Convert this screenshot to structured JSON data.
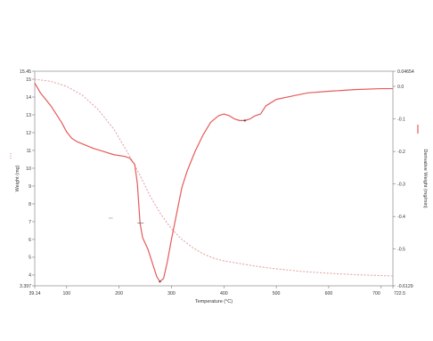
{
  "chart_data": {
    "type": "line",
    "title": "",
    "xlabel": "Temperature (°C)",
    "ylabel": "Weight (mg)",
    "y2label": "Derivative Weight (mg/min)",
    "xlim": [
      39.14,
      722.5
    ],
    "ylim": [
      3.397,
      15.45
    ],
    "y2lim": [
      -0.6129,
      0.04654
    ],
    "grid": false,
    "x_ticks": [
      {
        "value": 39.14,
        "label": "39.14"
      },
      {
        "value": 100,
        "label": "100"
      },
      {
        "value": 200,
        "label": "200"
      },
      {
        "value": 300,
        "label": "300"
      },
      {
        "value": 400,
        "label": "400"
      },
      {
        "value": 500,
        "label": "500"
      },
      {
        "value": 600,
        "label": "600"
      },
      {
        "value": 700,
        "label": "700"
      },
      {
        "value": 722.5,
        "label": "722.5"
      }
    ],
    "y_ticks": [
      {
        "value": 15.45,
        "label": "15.45"
      },
      {
        "value": 15,
        "label": "15"
      },
      {
        "value": 14,
        "label": "14"
      },
      {
        "value": 13,
        "label": "13"
      },
      {
        "value": 12,
        "label": "12"
      },
      {
        "value": 11,
        "label": "11"
      },
      {
        "value": 10,
        "label": "10"
      },
      {
        "value": 9,
        "label": "9"
      },
      {
        "value": 8,
        "label": "8"
      },
      {
        "value": 7,
        "label": "7"
      },
      {
        "value": 6,
        "label": "6"
      },
      {
        "value": 5,
        "label": "5"
      },
      {
        "value": 4,
        "label": "4"
      },
      {
        "value": 3.397,
        "label": "3.397"
      }
    ],
    "y2_ticks": [
      {
        "value": 0.04654,
        "label": "0.04654"
      },
      {
        "value": 0,
        "label": "0.0"
      },
      {
        "value": -0.1,
        "label": "-0.1"
      },
      {
        "value": -0.2,
        "label": "-0.2"
      },
      {
        "value": -0.3,
        "label": "-0.3"
      },
      {
        "value": -0.4,
        "label": "-0.4"
      },
      {
        "value": -0.5,
        "label": "-0.5"
      },
      {
        "value": -0.6129,
        "label": "-0.6129"
      }
    ],
    "series": [
      {
        "axis": "left",
        "style": "dotted",
        "color": "#e8a6a6",
        "points": [
          [
            39.14,
            15.0
          ],
          [
            70,
            14.88
          ],
          [
            100,
            14.6
          ],
          [
            130,
            14.1
          ],
          [
            160,
            13.3
          ],
          [
            190,
            12.2
          ],
          [
            220,
            10.7
          ],
          [
            240,
            9.6
          ],
          [
            260,
            8.4
          ],
          [
            280,
            7.4
          ],
          [
            300,
            6.6
          ],
          [
            320,
            6.0
          ],
          [
            340,
            5.55
          ],
          [
            360,
            5.2
          ],
          [
            380,
            4.95
          ],
          [
            400,
            4.8
          ],
          [
            430,
            4.65
          ],
          [
            460,
            4.5
          ],
          [
            500,
            4.35
          ],
          [
            550,
            4.2
          ],
          [
            600,
            4.1
          ],
          [
            650,
            4.02
          ],
          [
            700,
            3.97
          ],
          [
            722.5,
            3.95
          ]
        ]
      },
      {
        "axis": "right",
        "style": "solid",
        "color": "#e65a5a",
        "points": [
          [
            39.14,
            0.01
          ],
          [
            50,
            -0.02
          ],
          [
            60,
            -0.04
          ],
          [
            70,
            -0.06
          ],
          [
            80,
            -0.085
          ],
          [
            90,
            -0.11
          ],
          [
            100,
            -0.14
          ],
          [
            110,
            -0.16
          ],
          [
            120,
            -0.17
          ],
          [
            135,
            -0.18
          ],
          [
            150,
            -0.19
          ],
          [
            170,
            -0.2
          ],
          [
            190,
            -0.21
          ],
          [
            210,
            -0.215
          ],
          [
            220,
            -0.22
          ],
          [
            230,
            -0.24
          ],
          [
            235,
            -0.3
          ],
          [
            240,
            -0.42
          ],
          [
            245,
            -0.465
          ],
          [
            255,
            -0.5
          ],
          [
            265,
            -0.55
          ],
          [
            272,
            -0.585
          ],
          [
            278,
            -0.6
          ],
          [
            285,
            -0.59
          ],
          [
            292,
            -0.54
          ],
          [
            300,
            -0.47
          ],
          [
            310,
            -0.39
          ],
          [
            320,
            -0.31
          ],
          [
            330,
            -0.26
          ],
          [
            345,
            -0.2
          ],
          [
            360,
            -0.15
          ],
          [
            375,
            -0.11
          ],
          [
            390,
            -0.09
          ],
          [
            400,
            -0.085
          ],
          [
            410,
            -0.09
          ],
          [
            420,
            -0.1
          ],
          [
            430,
            -0.105
          ],
          [
            440,
            -0.105
          ],
          [
            450,
            -0.1
          ],
          [
            460,
            -0.09
          ],
          [
            470,
            -0.085
          ],
          [
            480,
            -0.06
          ],
          [
            500,
            -0.04
          ],
          [
            530,
            -0.03
          ],
          [
            560,
            -0.02
          ],
          [
            600,
            -0.015
          ],
          [
            650,
            -0.01
          ],
          [
            700,
            -0.007
          ],
          [
            722.5,
            -0.007
          ]
        ]
      }
    ]
  }
}
